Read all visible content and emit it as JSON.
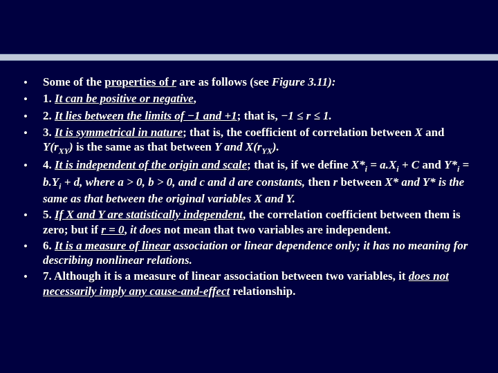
{
  "slide": {
    "background_color": "#000040",
    "bar_color": "#c0c8d8",
    "text_color": "#ffffff",
    "font_family": "Times New Roman",
    "font_size_pt": 17,
    "bullets": [
      {
        "html": "Some of the <span class=\"u\">properties of <i>r</i></span> are as follows (see <i>Figure 3.11):</i>"
      },
      {
        "html": "1. <i class=\"u\">It can be positive or negative</i>,"
      },
      {
        "html": "2. <i class=\"u\">It lies between the limits of −1 and +1</i>; that is, <i>−1 ≤ r ≤ 1.</i>"
      },
      {
        "html": "3. <i class=\"u\">It is symmetrical in nature</i>; that is, the coefficient of correlation between <i>X</i> and <i>Y(r<span class=\"sub\">XY</span>)</i> is the same as that between <i>Y and X(r<span class=\"sub\">YX</span>).</i>"
      },
      {
        "html": "4. <i class=\"u\">It is independent of the origin and scale</i>; that is, if we define <i>X*<span class=\"sub\">i</span> = a.X<span class=\"sub\">i</span> + C</i> and <i>Y*<span class=\"sub\">i</span> = b.Y<span class=\"sub\">i</span> + d, where a &gt; 0, b &gt; 0, and c and d are constants,</i> then <i>r</i> between <i>X* and Y* is the same as that between the original variables X and Y.</i>"
      },
      {
        "html": "5. <i class=\"u\">If X and Y are statistically independent</i>, the correlation coefficient between them is zero; but if <i class=\"u\">r = 0</i>, <i>it does</i> not mean that two variables are independent."
      },
      {
        "html": "6. <i class=\"u\">It is a measure of linear</i> <i>association or linear dependence only; it has no meaning for describing nonlinear relations.</i>"
      },
      {
        "html": "7. Although it is a measure of linear association between two variables, it <i class=\"u\">does not necessarily imply any cause-and-effect</i> relationship."
      }
    ]
  }
}
